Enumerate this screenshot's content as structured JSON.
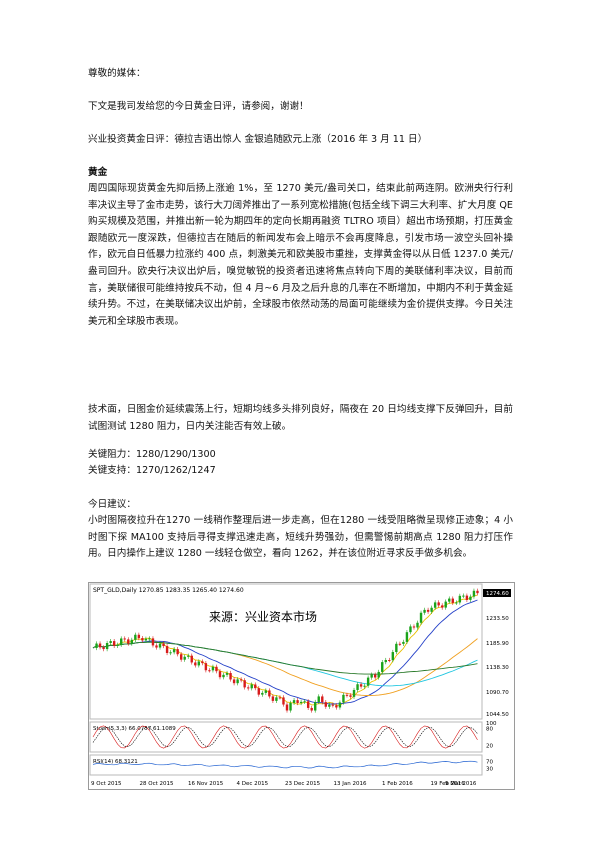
{
  "letter": {
    "salutation": "尊敬的媒体：",
    "intro": "下文是我司发给您的今日黄金日评，请参阅，谢谢！",
    "headline": "兴业投资黄金日评：德拉吉语出惊人 金银追随欧元上涨（2016 年 3 月 11 日）"
  },
  "gold": {
    "heading": "黄金",
    "paragraph1": "周四国际现货黄金先抑后扬上涨逾 1%，至 1270 美元/盎司关口，结束此前两连阴。欧洲央行行利率决议主导了金市走势，该行大刀阔斧推出了一系列宽松措施(包括全线下调三大利率、扩大月度 QE 购买规模及范围，并推出新一轮为期四年的定向长期再融资 TLTRO 项目）超出市场预期，打压黄金跟随欧元一度深跌，但德拉吉在随后的新闻发布会上暗示不会再度降息，引发市场一波空头回补操作，欧元自日低暴力拉涨约 400 点，刺激美元和欧美股市重挫，支撑黄金得以从日低 1237.0 美元/盎司回升。欧央行决议出炉后，嗅觉敏锐的投资者迅速将焦点转向下周的美联储利率决议，目前而言，美联储很可能维持按兵不动，但 4 月~6 月及之后升息的几率在不断增加，中期内不利于黄金延续升势。不过，在美联储决议出炉前，全球股市依然动荡的局面可能继续为金价提供支撑。今日关注美元和全球股市表现。",
    "paragraph2": "技术面，日图金价延续震荡上行，短期均线多头排列良好，隔夜在 20 日均线支撑下反弹回升，目前试图测试 1280 阻力，日内关注能否有效上破。",
    "resistance": "关键阻力：1280/1290/1300",
    "support": "关键支持：1270/1262/1247",
    "advice_heading": "今日建议：",
    "advice": "小时图隔夜拉升在1270 一线稍作整理后进一步走高，但在1280 一线受阻略微呈现修正迹象；4 小时图下探 MA100 支持后寻得支撑迅速走高，短线升势强劲，但需警惕前期高点 1280 阻力打压作用。日内操作上建议 1280 一线轻仓做空，看向 1262，并在该位附近寻求反手做多机会。"
  },
  "chart": {
    "header": "SPT_GLD,Daily  1270.85 1283.35 1265.40 1274.60",
    "watermark": "来源：兴业资本市场",
    "price_labels": [
      "1274.60",
      "1233.50",
      "1185.90",
      "1138.30",
      "1090.70",
      "1044.50"
    ],
    "stoch_label": "Stoch(5,3,3) 66.0757 61.1089",
    "stoch_levels": [
      "100",
      "80",
      "20"
    ],
    "rsi_label": "RSI(14) 68.3121",
    "rsi_levels": [
      "70",
      "30"
    ],
    "dates": [
      "9 Oct 2015",
      "28 Oct 2015",
      "16 Nov 2015",
      "4 Dec 2015",
      "23 Dec 2015",
      "13 Jan 2016",
      "1 Feb 2016",
      "19 Feb 2016",
      "9 Mar 2016"
    ],
    "colors": {
      "up": "#1aa31a",
      "down": "#d81b1b",
      "ma_short": "#e8c000",
      "ma_mid": "#2440c8",
      "ma_cyan": "#1fc6e0",
      "ma_orange": "#f0a020",
      "ma_green": "#2a7a2a"
    }
  }
}
